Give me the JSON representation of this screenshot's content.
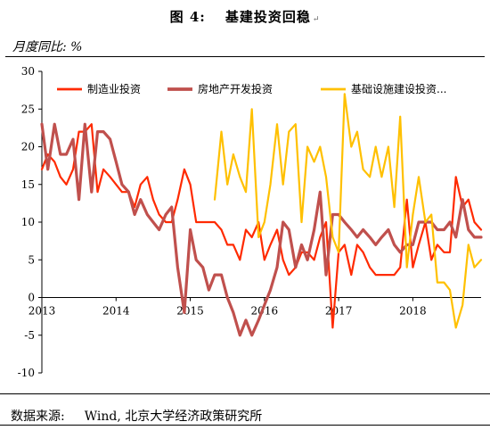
{
  "figure": {
    "label": "图 4:",
    "title": "基建投资回稳",
    "unit_label": "月度同比: %",
    "source_label": "数据来源:",
    "source_text": "Wind, 北京大学经济政策研究所",
    "paragraph_mark": "↵"
  },
  "chart_data": {
    "type": "line",
    "x_unit": "year",
    "xlim": [
      2013.0,
      2018.92
    ],
    "ylim": [
      -10,
      30
    ],
    "yticks": [
      -10,
      -5,
      0,
      5,
      10,
      15,
      20,
      25,
      30
    ],
    "xticks": [
      {
        "value": 2013,
        "label": "2013"
      },
      {
        "value": 2014,
        "label": "2014"
      },
      {
        "value": 2015,
        "label": "2015"
      },
      {
        "value": 2016,
        "label": "2016"
      },
      {
        "value": 2017,
        "label": "2017"
      },
      {
        "value": 2018,
        "label": "2018"
      }
    ],
    "legend_position": "top",
    "grid": false,
    "series": [
      {
        "name": "制造业投资",
        "color": "#ff2a00",
        "stroke_width": 2.2,
        "x": [
          2013.0,
          2013.08,
          2013.17,
          2013.25,
          2013.33,
          2013.42,
          2013.5,
          2013.58,
          2013.67,
          2013.75,
          2013.83,
          2013.92,
          2014.0,
          2014.08,
          2014.17,
          2014.25,
          2014.33,
          2014.42,
          2014.5,
          2014.58,
          2014.67,
          2014.75,
          2014.83,
          2014.92,
          2015.0,
          2015.08,
          2015.17,
          2015.25,
          2015.33,
          2015.42,
          2015.5,
          2015.58,
          2015.67,
          2015.75,
          2015.83,
          2015.92,
          2016.0,
          2016.08,
          2016.17,
          2016.25,
          2016.33,
          2016.42,
          2016.5,
          2016.58,
          2016.67,
          2016.75,
          2016.83,
          2016.92,
          2017.0,
          2017.08,
          2017.17,
          2017.25,
          2017.33,
          2017.42,
          2017.5,
          2017.58,
          2017.67,
          2017.75,
          2017.83,
          2017.92,
          2018.0,
          2018.08,
          2018.17,
          2018.25,
          2018.33,
          2018.42,
          2018.5,
          2018.58,
          2018.67,
          2018.75,
          2018.83,
          2018.92
        ],
        "y": [
          17,
          19,
          18,
          16,
          15,
          17,
          22,
          22,
          23,
          14,
          17,
          16,
          15,
          14,
          14,
          12,
          15,
          16,
          13,
          11,
          10,
          10,
          13,
          17,
          15,
          10,
          10,
          10,
          10,
          9,
          7,
          7,
          5,
          9,
          8,
          10,
          5,
          7,
          9,
          5,
          3,
          4,
          6,
          6,
          5,
          8,
          10,
          -4,
          6,
          7,
          3,
          7,
          6,
          4,
          3,
          3,
          3,
          3,
          4,
          13,
          4,
          7,
          10,
          5,
          7,
          6,
          6,
          16,
          12,
          13,
          10,
          9
        ]
      },
      {
        "name": "房地产开发投资",
        "color": "#c0504d",
        "stroke_width": 3.2,
        "x": [
          2013.0,
          2013.08,
          2013.17,
          2013.25,
          2013.33,
          2013.42,
          2013.5,
          2013.58,
          2013.67,
          2013.75,
          2013.83,
          2013.92,
          2014.0,
          2014.08,
          2014.17,
          2014.25,
          2014.33,
          2014.42,
          2014.5,
          2014.58,
          2014.67,
          2014.75,
          2014.83,
          2014.92,
          2015.0,
          2015.08,
          2015.17,
          2015.25,
          2015.33,
          2015.42,
          2015.5,
          2015.58,
          2015.67,
          2015.75,
          2015.83,
          2015.92,
          2016.0,
          2016.08,
          2016.17,
          2016.25,
          2016.33,
          2016.42,
          2016.5,
          2016.58,
          2016.67,
          2016.75,
          2016.83,
          2016.92,
          2017.0,
          2017.08,
          2017.17,
          2017.25,
          2017.33,
          2017.42,
          2017.5,
          2017.58,
          2017.67,
          2017.75,
          2017.83,
          2017.92,
          2018.0,
          2018.08,
          2018.17,
          2018.25,
          2018.33,
          2018.42,
          2018.5,
          2018.58,
          2018.67,
          2018.75,
          2018.83,
          2018.92
        ],
        "y": [
          23,
          17,
          23,
          19,
          19,
          21,
          13,
          23,
          14,
          22,
          22,
          21,
          18,
          15,
          14,
          11,
          13,
          11,
          10,
          9,
          11,
          12,
          4,
          -2,
          9,
          5,
          4,
          1,
          3,
          3,
          0,
          -2,
          -5,
          -3,
          -5,
          -3,
          -1,
          1,
          4,
          10,
          9,
          4,
          7,
          5,
          9,
          14,
          3,
          11,
          11,
          10,
          9,
          8,
          9,
          8,
          7,
          8,
          9,
          7,
          6,
          7,
          7,
          10,
          10,
          10,
          9,
          9,
          10,
          8,
          13,
          9,
          8,
          8
        ]
      },
      {
        "name": "基础设施建设投资...",
        "color": "#ffc000",
        "stroke_width": 2.2,
        "x": [
          2015.33,
          2015.42,
          2015.5,
          2015.58,
          2015.67,
          2015.75,
          2015.83,
          2015.92,
          2016.0,
          2016.08,
          2016.17,
          2016.25,
          2016.33,
          2016.42,
          2016.5,
          2016.58,
          2016.67,
          2016.75,
          2016.83,
          2016.92,
          2017.0,
          2017.08,
          2017.17,
          2017.25,
          2017.33,
          2017.42,
          2017.5,
          2017.58,
          2017.67,
          2017.75,
          2017.83,
          2017.92,
          2018.0,
          2018.08,
          2018.17,
          2018.25,
          2018.33,
          2018.42,
          2018.5,
          2018.58,
          2018.67,
          2018.75,
          2018.83,
          2018.92
        ],
        "y": [
          13,
          22,
          15,
          19,
          16,
          14,
          25,
          8,
          10,
          15,
          23,
          15,
          22,
          23,
          10,
          20,
          18,
          20,
          16,
          8,
          6,
          27,
          20,
          22,
          17,
          16,
          20,
          16,
          20,
          12,
          24,
          4,
          11,
          16,
          10,
          11,
          2,
          2,
          1,
          -4,
          -1,
          7,
          4,
          5
        ]
      }
    ]
  }
}
